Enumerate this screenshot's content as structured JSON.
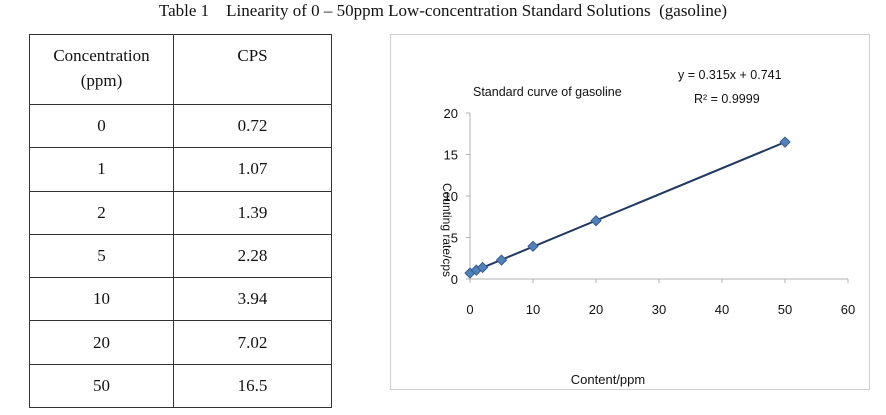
{
  "caption": "Table 1    Linearity of 0 – 50ppm Low-concentration Standard Solutions  (gasoline)",
  "table": {
    "header": {
      "col1_line1": "Concentration",
      "col1_line2": "(ppm)",
      "col2": "CPS"
    },
    "rows": [
      {
        "concentration": "0",
        "cps": "0.72"
      },
      {
        "concentration": "1",
        "cps": "1.07"
      },
      {
        "concentration": "2",
        "cps": "1.39"
      },
      {
        "concentration": "5",
        "cps": "2.28"
      },
      {
        "concentration": "10",
        "cps": "3.94"
      },
      {
        "concentration": "20",
        "cps": "7.02"
      },
      {
        "concentration": "50",
        "cps": "16.5"
      }
    ]
  },
  "chart_data": {
    "type": "scatter",
    "title": "Standard curve of gasoline",
    "xlabel": "Content/ppm",
    "ylabel": "Counting rate/cps",
    "xlim": [
      0,
      60
    ],
    "ylim": [
      0,
      20
    ],
    "xticks": [
      "0",
      "10",
      "20",
      "30",
      "40",
      "50",
      "60"
    ],
    "yticks": [
      "0",
      "5",
      "10",
      "15",
      "20"
    ],
    "x": [
      0,
      1,
      2,
      5,
      10,
      20,
      50
    ],
    "y": [
      0.72,
      1.07,
      1.39,
      2.28,
      3.94,
      7.02,
      16.5
    ],
    "trendline": {
      "slope": 0.315,
      "intercept": 0.741
    },
    "equation": "y = 0.315x + 0.741",
    "r_squared": "R² = 0.9999",
    "grid": false,
    "colors": {
      "marker": "#4F81BD",
      "marker_edge": "#385D8A",
      "trendline": "#1F3864"
    }
  }
}
